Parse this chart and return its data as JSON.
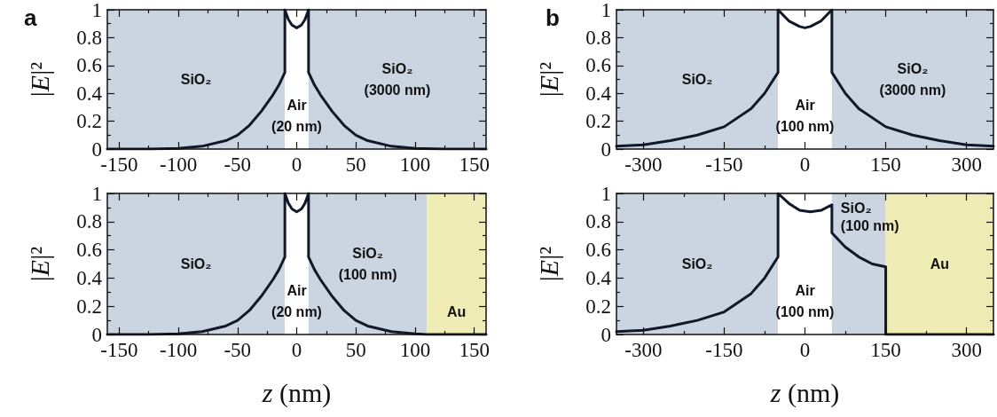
{
  "chart_data": [
    {
      "type": "line",
      "title": "a",
      "ylabel": "|E|²",
      "marker": "none",
      "grid": false,
      "xlim": [
        -160,
        160
      ],
      "ylim": [
        0,
        1
      ],
      "xticks": [
        -150,
        {
          "value": -125,
          "label": null
        },
        -100,
        {
          "value": -75,
          "label": null
        },
        -50,
        {
          "value": -25,
          "label": null
        },
        0,
        {
          "value": 25,
          "label": null
        },
        50,
        {
          "value": 75,
          "label": null
        },
        100,
        {
          "value": 125,
          "label": null
        },
        150
      ],
      "yticks": [
        0,
        {
          "value": 0.1,
          "label": null
        },
        0.2,
        {
          "value": 0.3,
          "label": null
        },
        0.4,
        {
          "value": 0.5,
          "label": null
        },
        0.6,
        {
          "value": 0.7,
          "label": null
        },
        0.8,
        {
          "value": 0.9,
          "label": null
        },
        1
      ],
      "series": [
        {
          "color": "#111827",
          "x": [
            -160,
            -125,
            -100,
            -80,
            -60,
            -50,
            -40,
            -30,
            -20,
            -15,
            -10,
            -10,
            -7,
            -4,
            0,
            4,
            7,
            10,
            10,
            15,
            20,
            30,
            40,
            50,
            60,
            80,
            100,
            125,
            160
          ],
          "values": [
            0,
            0,
            0.005,
            0.02,
            0.06,
            0.1,
            0.17,
            0.27,
            0.39,
            0.46,
            0.55,
            1,
            0.93,
            0.89,
            0.87,
            0.89,
            0.93,
            1,
            0.55,
            0.46,
            0.39,
            0.27,
            0.17,
            0.1,
            0.06,
            0.02,
            0.005,
            0,
            0
          ]
        }
      ],
      "bands": [
        {
          "axis": "x",
          "from": -160,
          "to": -10,
          "label": "SiO₂",
          "color": "#cbd4e1"
        },
        {
          "axis": "x",
          "from": -10,
          "to": 10,
          "label": "Air\n(20 nm)",
          "color": "#ffffff"
        },
        {
          "axis": "x",
          "from": 10,
          "to": 160,
          "label": "SiO₂\n(3000 nm)",
          "color": "#cbd4e1"
        }
      ]
    },
    {
      "type": "line",
      "title": "b",
      "ylabel": "|E|²",
      "marker": "none",
      "grid": false,
      "xlim": [
        -350,
        350
      ],
      "ylim": [
        0,
        1
      ],
      "xticks": [
        -300,
        {
          "value": -225,
          "label": null
        },
        -150,
        {
          "value": -75,
          "label": null
        },
        0,
        {
          "value": 75,
          "label": null
        },
        150,
        {
          "value": 225,
          "label": null
        },
        300
      ],
      "yticks": [
        0,
        {
          "value": 0.1,
          "label": null
        },
        0.2,
        {
          "value": 0.3,
          "label": null
        },
        0.4,
        {
          "value": 0.5,
          "label": null
        },
        0.6,
        {
          "value": 0.7,
          "label": null
        },
        0.8,
        {
          "value": 0.9,
          "label": null
        },
        1
      ],
      "series": [
        {
          "color": "#111827",
          "x": [
            -350,
            -300,
            -250,
            -200,
            -150,
            -100,
            -75,
            -50,
            -50,
            -30,
            -10,
            0,
            10,
            30,
            50,
            50,
            75,
            100,
            150,
            200,
            250,
            300,
            350
          ],
          "values": [
            0.02,
            0.03,
            0.06,
            0.1,
            0.16,
            0.29,
            0.4,
            0.55,
            1,
            0.92,
            0.88,
            0.87,
            0.88,
            0.92,
            1,
            0.55,
            0.4,
            0.29,
            0.16,
            0.1,
            0.06,
            0.03,
            0.02
          ]
        }
      ],
      "bands": [
        {
          "axis": "x",
          "from": -350,
          "to": -50,
          "label": "SiO₂",
          "color": "#cbd4e1"
        },
        {
          "axis": "x",
          "from": -50,
          "to": 50,
          "label": "Air\n(100 nm)",
          "color": "#ffffff"
        },
        {
          "axis": "x",
          "from": 50,
          "to": 350,
          "label": "SiO₂\n(3000 nm)",
          "color": "#cbd4e1"
        }
      ]
    },
    {
      "type": "line",
      "xlabel": "z (nm)",
      "ylabel": "|E|²",
      "marker": "none",
      "grid": false,
      "xlim": [
        -160,
        160
      ],
      "ylim": [
        0,
        1
      ],
      "xticks": [
        -150,
        {
          "value": -125,
          "label": null
        },
        -100,
        {
          "value": -75,
          "label": null
        },
        -50,
        {
          "value": -25,
          "label": null
        },
        0,
        {
          "value": 25,
          "label": null
        },
        50,
        {
          "value": 75,
          "label": null
        },
        100,
        {
          "value": 125,
          "label": null
        },
        150
      ],
      "yticks": [
        0,
        {
          "value": 0.1,
          "label": null
        },
        0.2,
        {
          "value": 0.3,
          "label": null
        },
        0.4,
        {
          "value": 0.5,
          "label": null
        },
        0.6,
        {
          "value": 0.7,
          "label": null
        },
        0.8,
        {
          "value": 0.9,
          "label": null
        },
        1
      ],
      "series": [
        {
          "color": "#111827",
          "x": [
            -160,
            -125,
            -100,
            -80,
            -60,
            -50,
            -40,
            -30,
            -20,
            -15,
            -10,
            -10,
            -7,
            -4,
            0,
            4,
            7,
            10,
            10,
            15,
            20,
            30,
            40,
            50,
            60,
            80,
            100,
            110,
            125,
            160
          ],
          "values": [
            0,
            0,
            0.005,
            0.02,
            0.06,
            0.1,
            0.17,
            0.27,
            0.39,
            0.46,
            0.55,
            1,
            0.93,
            0.89,
            0.87,
            0.89,
            0.93,
            1,
            0.55,
            0.46,
            0.39,
            0.27,
            0.17,
            0.1,
            0.06,
            0.02,
            0.005,
            0,
            0,
            0
          ]
        }
      ],
      "bands": [
        {
          "axis": "x",
          "from": -160,
          "to": -10,
          "label": "SiO₂",
          "color": "#cbd4e1"
        },
        {
          "axis": "x",
          "from": -10,
          "to": 10,
          "label": "Air\n(20 nm)",
          "color": "#ffffff"
        },
        {
          "axis": "x",
          "from": 10,
          "to": 110,
          "label": "SiO₂\n(100 nm)",
          "color": "#cbd4e1"
        },
        {
          "axis": "x",
          "from": 110,
          "to": 160,
          "label": "Au",
          "color": "#efedb5"
        }
      ]
    },
    {
      "type": "line",
      "xlabel": "z (nm)",
      "ylabel": "|E|²",
      "marker": "none",
      "grid": false,
      "xlim": [
        -350,
        350
      ],
      "ylim": [
        0,
        1
      ],
      "xticks": [
        -300,
        {
          "value": -225,
          "label": null
        },
        -150,
        {
          "value": -75,
          "label": null
        },
        0,
        {
          "value": 75,
          "label": null
        },
        150,
        {
          "value": 225,
          "label": null
        },
        300
      ],
      "yticks": [
        0,
        {
          "value": 0.1,
          "label": null
        },
        0.2,
        {
          "value": 0.3,
          "label": null
        },
        0.4,
        {
          "value": 0.5,
          "label": null
        },
        0.6,
        {
          "value": 0.7,
          "label": null
        },
        0.8,
        {
          "value": 0.9,
          "label": null
        },
        1
      ],
      "series": [
        {
          "color": "#111827",
          "x": [
            -350,
            -300,
            -250,
            -200,
            -150,
            -100,
            -75,
            -50,
            -50,
            -30,
            -10,
            10,
            30,
            50,
            50,
            75,
            100,
            125,
            150,
            150,
            250,
            350
          ],
          "values": [
            0.02,
            0.03,
            0.06,
            0.1,
            0.16,
            0.29,
            0.4,
            0.55,
            1,
            0.93,
            0.88,
            0.87,
            0.88,
            0.92,
            0.72,
            0.62,
            0.55,
            0.5,
            0.48,
            0,
            0,
            0
          ]
        }
      ],
      "bands": [
        {
          "axis": "x",
          "from": -350,
          "to": -50,
          "label": "SiO₂",
          "color": "#cbd4e1"
        },
        {
          "axis": "x",
          "from": -50,
          "to": 50,
          "label": "Air\n(100 nm)",
          "color": "#ffffff"
        },
        {
          "axis": "x",
          "from": 50,
          "to": 150,
          "label": "SiO₂\n(100 nm)",
          "color": "#cbd4e1"
        },
        {
          "axis": "x",
          "from": 150,
          "to": 350,
          "label": "Au",
          "color": "#efedb5"
        }
      ]
    }
  ]
}
